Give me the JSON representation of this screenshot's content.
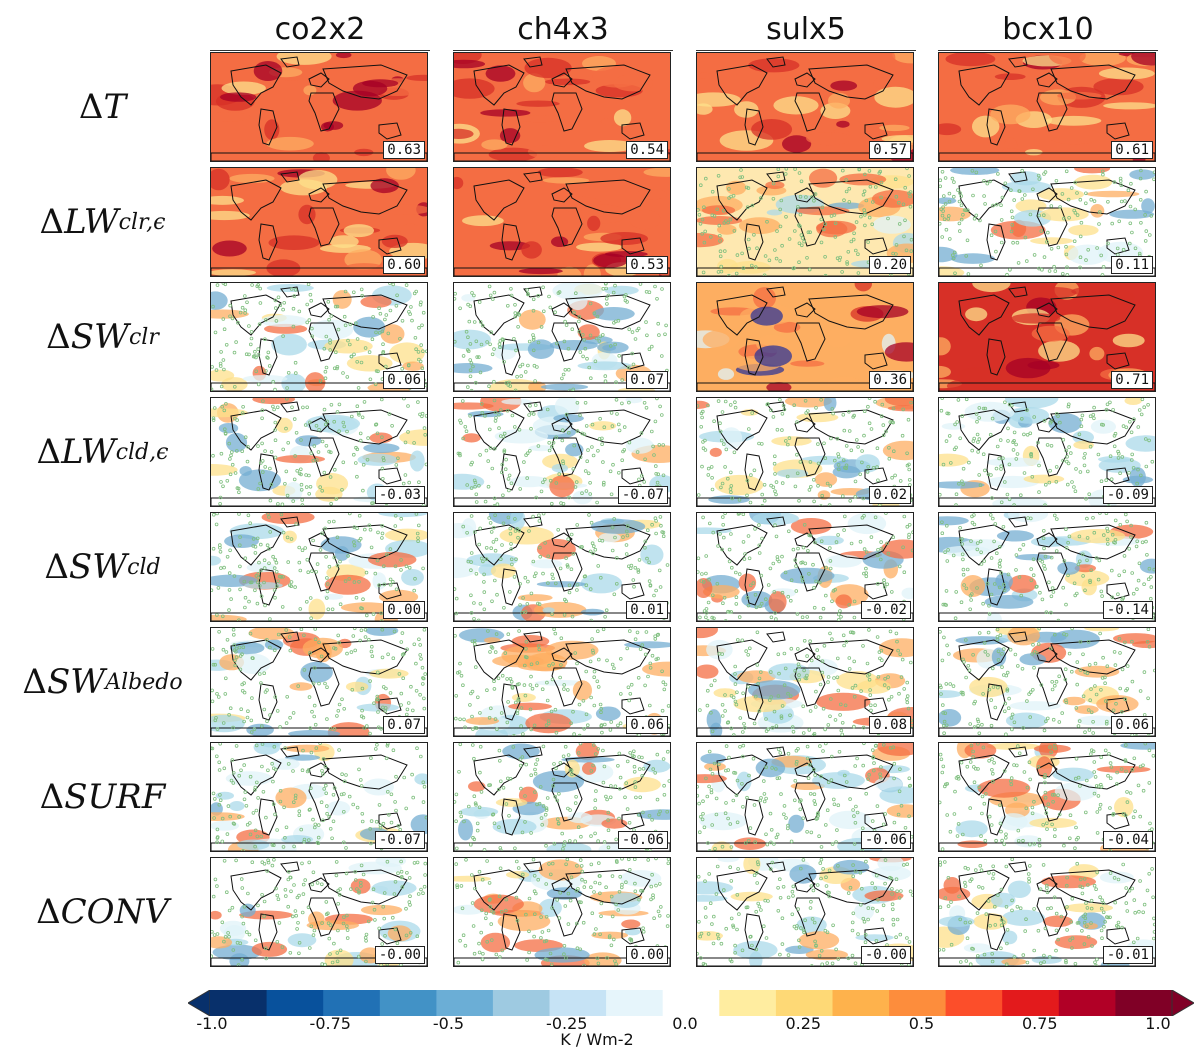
{
  "columns": [
    "co2x2",
    "ch4x3",
    "sulx5",
    "bcx10"
  ],
  "rows": [
    {
      "delta": "Δ",
      "main": "T",
      "sub": "",
      "values": [
        "0.63",
        "0.54",
        "0.57",
        "0.61"
      ]
    },
    {
      "delta": "Δ",
      "main": "LW",
      "sub": "clr,ϵ",
      "values": [
        "0.60",
        "0.53",
        "0.20",
        "0.11"
      ]
    },
    {
      "delta": "Δ",
      "main": "SW",
      "sub": "clr",
      "values": [
        "0.06",
        "0.07",
        "0.36",
        "0.71"
      ]
    },
    {
      "delta": "Δ",
      "main": "LW",
      "sub": "cld,ϵ",
      "values": [
        "-0.03",
        "-0.07",
        "0.02",
        "-0.09"
      ]
    },
    {
      "delta": "Δ",
      "main": "SW",
      "sub": "cld",
      "values": [
        "0.00",
        "0.01",
        "-0.02",
        "-0.14"
      ]
    },
    {
      "delta": "Δ",
      "main": "SW",
      "sub": "Albedo",
      "values": [
        "0.07",
        "0.06",
        "0.08",
        "0.06"
      ]
    },
    {
      "delta": "Δ",
      "main": "SURF",
      "sub": "",
      "values": [
        "-0.07",
        "-0.06",
        "-0.06",
        "-0.04"
      ]
    },
    {
      "delta": "Δ",
      "main": "CONV",
      "sub": "",
      "values": [
        "-0.00",
        "0.00",
        "-0.00",
        "-0.01"
      ]
    }
  ],
  "colorbar": {
    "ticks": [
      "-1.0",
      "-0.75",
      "-0.5",
      "-0.25",
      "0.0",
      "0.25",
      "0.5",
      "0.75",
      "1.0"
    ],
    "units": "K / Wm-2",
    "range": [
      -1.0,
      1.0
    ],
    "colors": [
      "#08306b",
      "#08519c",
      "#2171b5",
      "#4292c6",
      "#6baed6",
      "#9ecae1",
      "#c6e3f5",
      "#e6f5fb",
      "#ffffff",
      "#ffeda0",
      "#fed976",
      "#feb24c",
      "#fd8d3c",
      "#fc4e2a",
      "#e31a1c",
      "#b10026",
      "#800026"
    ]
  },
  "stipple_color": "#7fbf7f"
}
